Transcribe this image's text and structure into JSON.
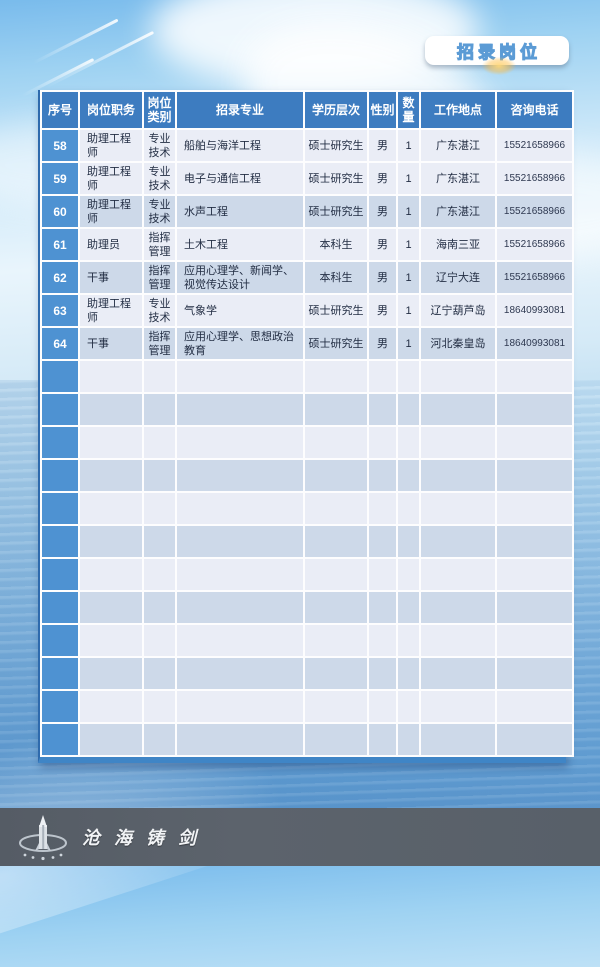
{
  "page": {
    "badge_title": "招录岗位",
    "footer_logo_text": "沧海铸剑"
  },
  "colors": {
    "header_blue": "#3d7cc0",
    "seq_column_blue": "#4e92d2",
    "row_light": "#eaedf6",
    "row_dark": "#cdd9e9",
    "table_bottom_bar": "#3f85c6",
    "footer_gray": "#5c636c",
    "badge_text_blue": "#5b9bd5"
  },
  "table": {
    "headers": [
      "序号",
      "岗位职务",
      "岗位类别",
      "招录专业",
      "学历层次",
      "性别",
      "数量",
      "工作地点",
      "咨询电话"
    ],
    "rows": [
      {
        "no": "58",
        "position": "助理工程师",
        "category": "专业技术",
        "major": "船舶与海洋工程",
        "education": "硕士研究生",
        "gender": "男",
        "count": "1",
        "location": "广东湛江",
        "phone": "15521658966",
        "shade": "light"
      },
      {
        "no": "59",
        "position": "助理工程师",
        "category": "专业技术",
        "major": "电子与通信工程",
        "education": "硕士研究生",
        "gender": "男",
        "count": "1",
        "location": "广东湛江",
        "phone": "15521658966",
        "shade": "light"
      },
      {
        "no": "60",
        "position": "助理工程师",
        "category": "专业技术",
        "major": "水声工程",
        "education": "硕士研究生",
        "gender": "男",
        "count": "1",
        "location": "广东湛江",
        "phone": "15521658966",
        "shade": "dark"
      },
      {
        "no": "61",
        "position": "助理员",
        "category": "指挥管理",
        "major": "土木工程",
        "education": "本科生",
        "gender": "男",
        "count": "1",
        "location": "海南三亚",
        "phone": "15521658966",
        "shade": "light"
      },
      {
        "no": "62",
        "position": "干事",
        "category": "指挥管理",
        "major": "应用心理学、新闻学、视觉传达设计",
        "education": "本科生",
        "gender": "男",
        "count": "1",
        "location": "辽宁大连",
        "phone": "15521658966",
        "shade": "dark"
      },
      {
        "no": "63",
        "position": "助理工程师",
        "category": "专业技术",
        "major": "气象学",
        "education": "硕士研究生",
        "gender": "男",
        "count": "1",
        "location": "辽宁葫芦岛",
        "phone": "18640993081",
        "shade": "light"
      },
      {
        "no": "64",
        "position": "干事",
        "category": "指挥管理",
        "major": "应用心理学、思想政治教育",
        "education": "硕士研究生",
        "gender": "男",
        "count": "1",
        "location": "河北秦皇岛",
        "phone": "18640993081",
        "shade": "dark"
      }
    ],
    "empty_row_count": 12
  }
}
